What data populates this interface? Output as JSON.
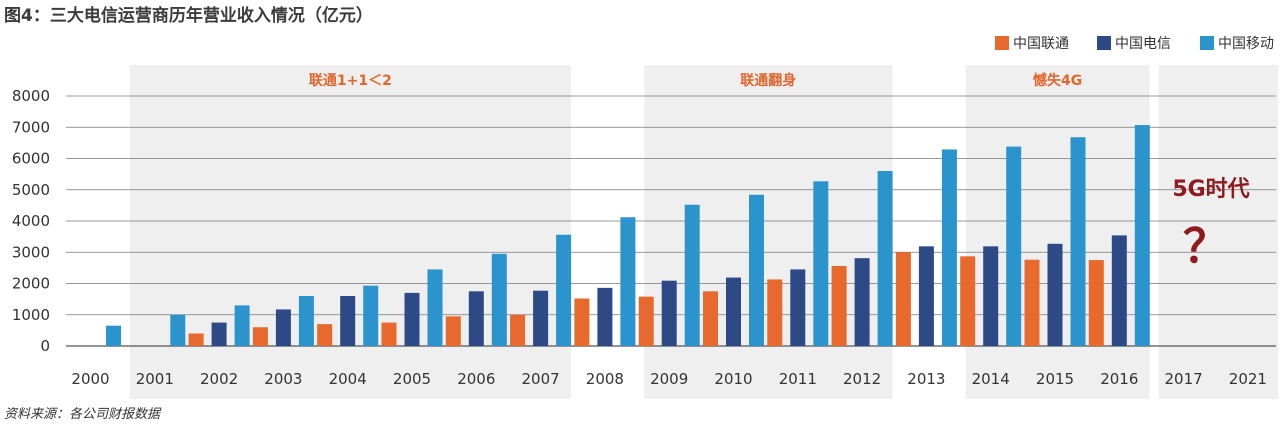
{
  "chart_data": {
    "type": "bar",
    "title": "图4：三大电信运营商历年营业收入情况（亿元）",
    "categories": [
      "2000",
      "2001",
      "2002",
      "2003",
      "2004",
      "2005",
      "2006",
      "2007",
      "2008",
      "2009",
      "2010",
      "2011",
      "2012",
      "2013",
      "2014",
      "2015",
      "2016",
      "2017",
      "2021"
    ],
    "series": [
      {
        "name": "中国联通",
        "color": "#e8692d",
        "values": [
          null,
          null,
          400,
          600,
          700,
          750,
          950,
          1000,
          1520,
          1580,
          1750,
          2130,
          2560,
          3000,
          2870,
          2760,
          2750,
          null,
          null
        ]
      },
      {
        "name": "中国电信",
        "color": "#2e4a86",
        "values": [
          null,
          null,
          750,
          1170,
          1600,
          1700,
          1750,
          1770,
          1860,
          2090,
          2190,
          2450,
          2810,
          3190,
          3190,
          3270,
          3540,
          null,
          null
        ]
      },
      {
        "name": "中国移动",
        "color": "#2b94cc",
        "values": [
          650,
          1000,
          1300,
          1600,
          1930,
          2450,
          2950,
          3560,
          4120,
          4520,
          4840,
          5270,
          5600,
          6290,
          6380,
          6680,
          7070,
          null,
          null
        ]
      }
    ],
    "yticks": [
      "0",
      "1000",
      "2000",
      "3000",
      "4000",
      "5000",
      "6000",
      "7000",
      "8000"
    ],
    "ylim": [
      0,
      8000
    ],
    "grid": true,
    "legend": "top-right",
    "periods": [
      {
        "label": "联通1+1＜2",
        "from": "2001",
        "to": "2007"
      },
      {
        "label": "联通翻身",
        "from": "2009",
        "to": "2012"
      },
      {
        "label": "憾失4G",
        "from": "2014",
        "to": "2016"
      },
      {
        "label": "",
        "from": "2017",
        "to": "2021"
      }
    ],
    "annotation": {
      "line1": "5G时代",
      "line2": "？"
    },
    "source": "资料来源：各公司财报数据"
  }
}
